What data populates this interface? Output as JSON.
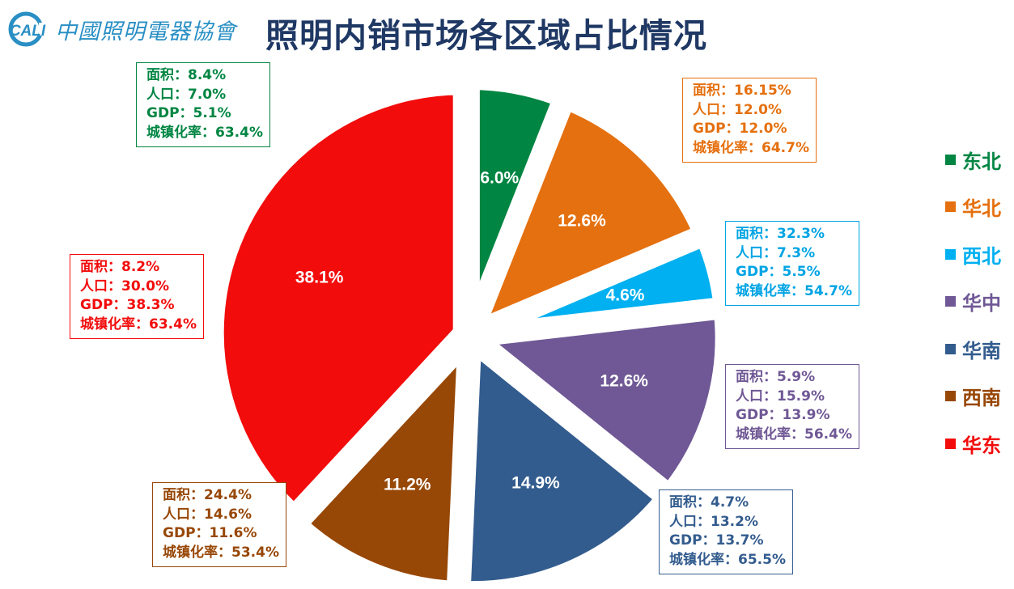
{
  "header": {
    "logo_text": "中國照明電器協會",
    "logo_mark_text": "CALI",
    "title": "照明内销市场各区域占比情况"
  },
  "chart_data": {
    "type": "pie",
    "title": "照明内销市场各区域占比情况",
    "exploded": true,
    "legend_position": "right",
    "slices": [
      {
        "name": "东北",
        "value": 6.0,
        "label": "6.0%",
        "color": "#008542",
        "info": [
          "面积：8.4%",
          "人口：7.0%",
          "GDP：5.1%",
          "城镇化率：63.4%"
        ]
      },
      {
        "name": "华北",
        "value": 12.6,
        "label": "12.6%",
        "color": "#e5700f",
        "info": [
          "面积：16.15%",
          "人口：12.0%",
          "GDP：12.0%",
          "城镇化率：64.7%"
        ]
      },
      {
        "name": "西北",
        "value": 4.6,
        "label": "4.6%",
        "color": "#00b0f0",
        "info": [
          "面积：32.3%",
          "人口：7.3%",
          "GDP：5.5%",
          "城镇化率：54.7%"
        ]
      },
      {
        "name": "华中",
        "value": 12.6,
        "label": "12.6%",
        "color": "#6f5895",
        "info": [
          "面积：5.9%",
          "人口：15.9%",
          "GDP：13.9%",
          "城镇化率：56.4%"
        ]
      },
      {
        "name": "华南",
        "value": 14.9,
        "label": "14.9%",
        "color": "#335c8e",
        "info": [
          "面积：4.7%",
          "人口：13.2%",
          "GDP：13.7%",
          "城镇化率：65.5%"
        ]
      },
      {
        "name": "西南",
        "value": 11.2,
        "label": "11.2%",
        "color": "#974706",
        "info": [
          "面积：24.4%",
          "人口：14.6%",
          "GDP：11.6%",
          "城镇化率：53.4%"
        ]
      },
      {
        "name": "华东",
        "value": 38.1,
        "label": "38.1%",
        "color": "#f20c0c",
        "info": [
          "面积：8.2%",
          "人口：30.0%",
          "GDP：38.3%",
          "城镇化率：63.4%"
        ]
      }
    ]
  }
}
